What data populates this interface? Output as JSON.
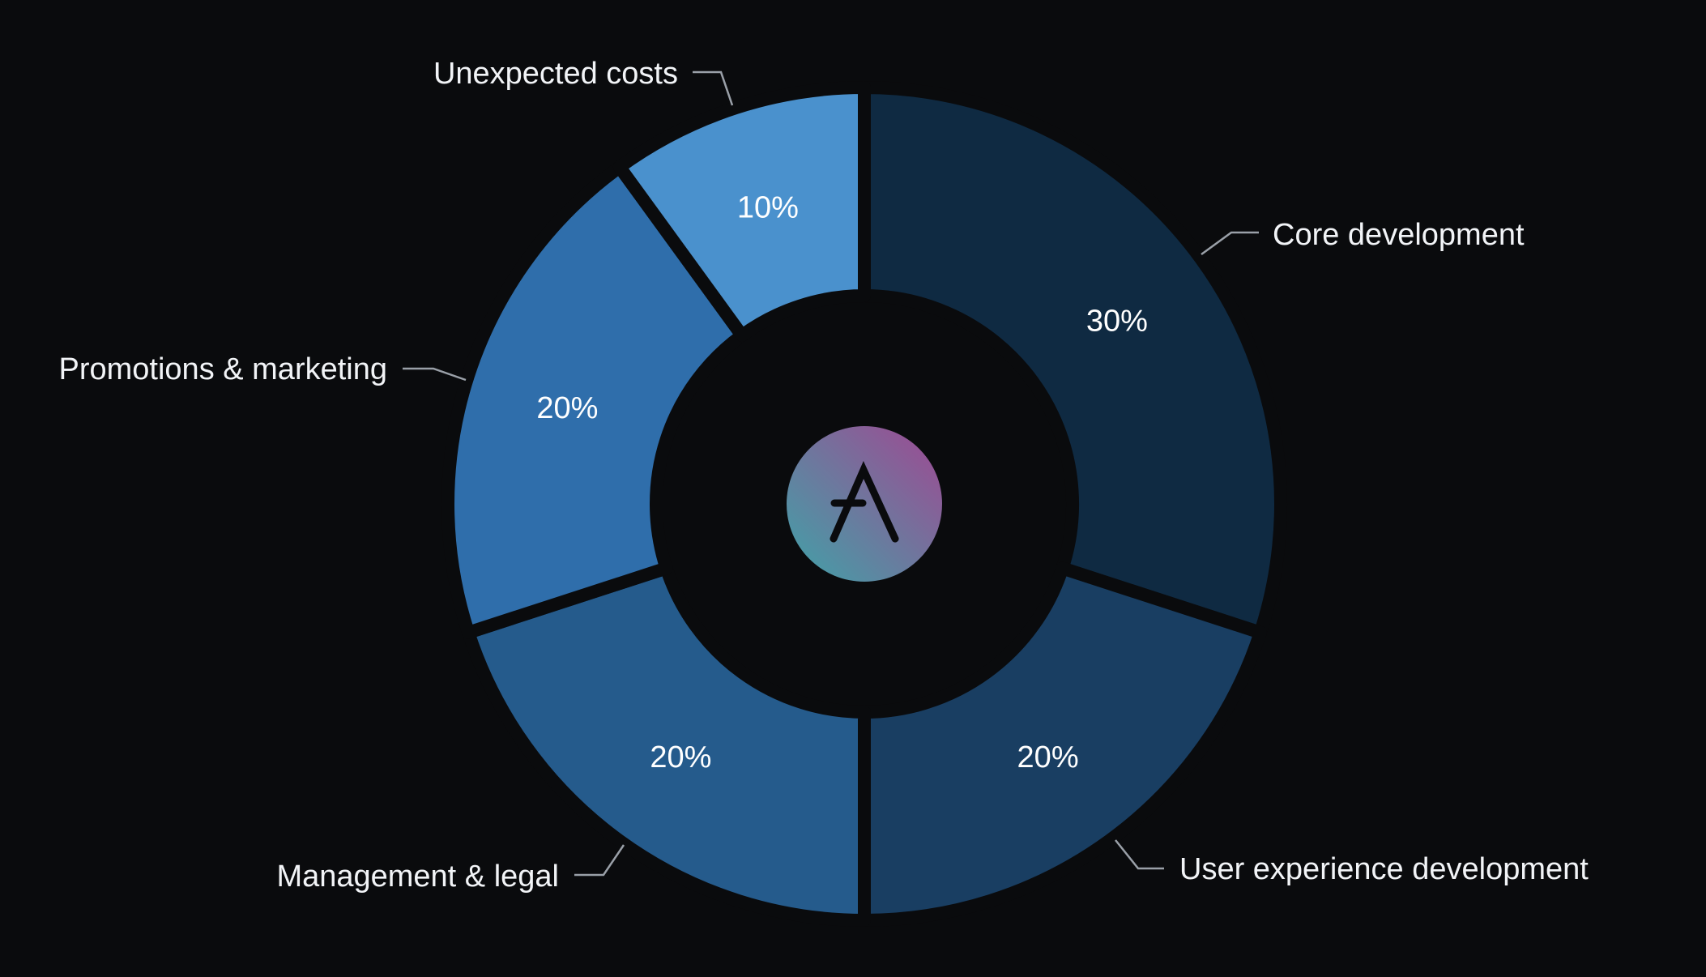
{
  "chart_data": {
    "type": "pie",
    "variant": "donut",
    "start": "top",
    "direction": "clockwise",
    "slices": [
      {
        "label": "Core development",
        "value": 30,
        "value_label": "30%",
        "color": "#0f2a42"
      },
      {
        "label": "User experience development",
        "value": 20,
        "value_label": "20%",
        "color": "#193e62"
      },
      {
        "label": "Management & legal",
        "value": 20,
        "value_label": "20%",
        "color": "#255b8c"
      },
      {
        "label": "Promotions & marketing",
        "value": 20,
        "value_label": "20%",
        "color": "#2f6eab"
      },
      {
        "label": "Unexpected costs",
        "value": 10,
        "value_label": "10%",
        "color": "#4a91cd"
      }
    ],
    "center_logo": {
      "icon": "aave-logo",
      "gradient": [
        "#3fa3a8",
        "#9c4a94"
      ]
    }
  }
}
